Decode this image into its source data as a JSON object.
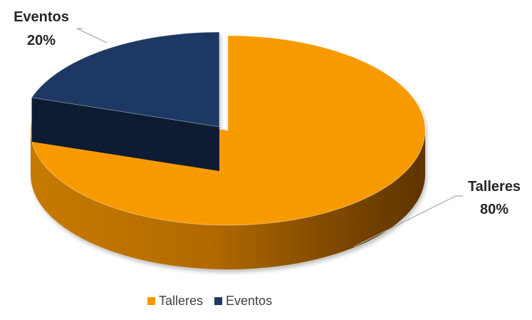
{
  "chart_data": {
    "type": "pie",
    "style": "3d",
    "title": "",
    "categories": [
      "Talleres",
      "Eventos"
    ],
    "values": [
      80,
      20
    ],
    "value_labels": [
      "80%",
      "20%"
    ],
    "colors": [
      "#F79A00",
      "#1F3864"
    ],
    "legend": {
      "position": "bottom",
      "entries": [
        "Talleres",
        "Eventos"
      ]
    }
  }
}
